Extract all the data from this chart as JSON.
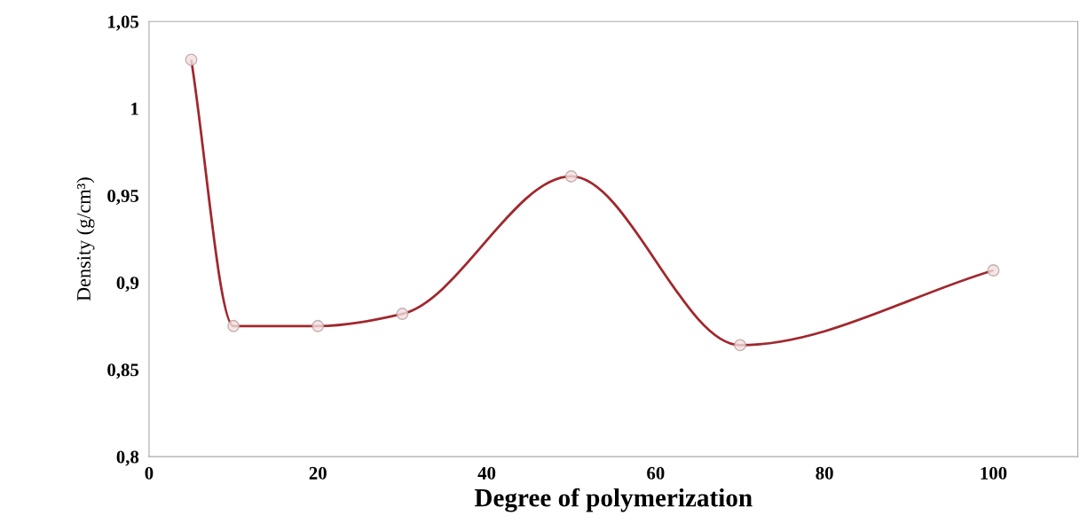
{
  "chart_data": {
    "type": "line",
    "xlabel": "Degree of polymerization",
    "ylabel": "Density (g/cm³)",
    "x": [
      5,
      10,
      20,
      30,
      50,
      70,
      100
    ],
    "series": [
      {
        "color": "#a0282d",
        "values": [
          1.028,
          0.875,
          0.875,
          0.882,
          0.961,
          0.864,
          0.907
        ]
      }
    ],
    "xlim": [
      0,
      110
    ],
    "xticks": [
      0,
      20,
      40,
      60,
      80,
      100
    ],
    "ylim": [
      0.8,
      1.05
    ],
    "yticks": [
      {
        "value": 0.8,
        "label": "0,8"
      },
      {
        "value": 0.85,
        "label": "0,85"
      },
      {
        "value": 0.9,
        "label": "0,9"
      },
      {
        "value": 0.95,
        "label": "0,95"
      },
      {
        "value": 1,
        "label": "1"
      },
      {
        "value": 1.05,
        "label": "1,05"
      }
    ],
    "grid": false,
    "legend": false,
    "marker": "circle",
    "line_style": "solid"
  }
}
